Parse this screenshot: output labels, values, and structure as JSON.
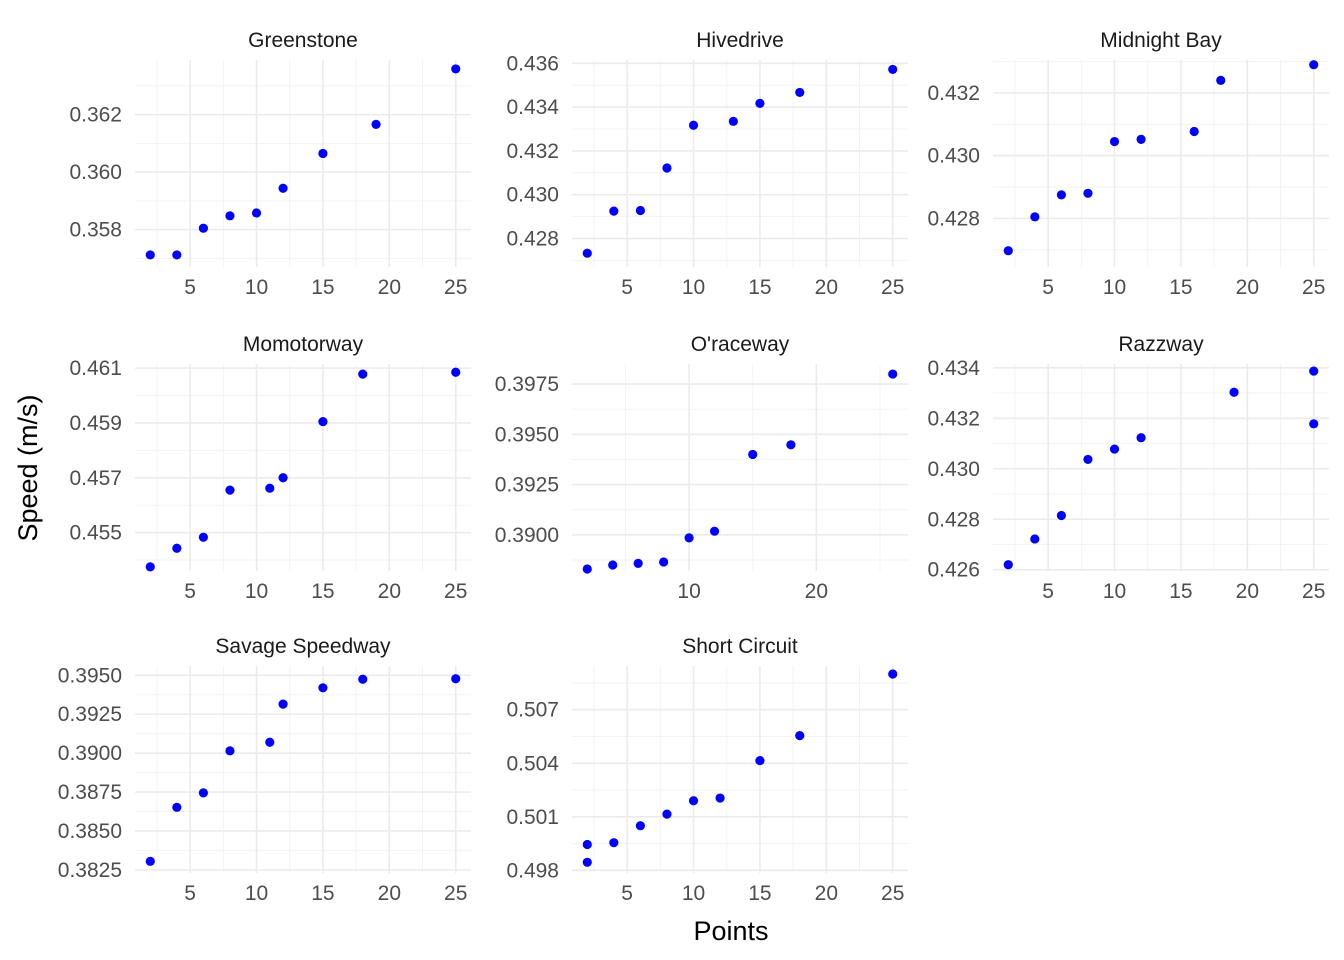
{
  "chart_data": {
    "type": "scatter",
    "xlabel": "Points",
    "ylabel": "Speed (m/s)",
    "point_color": "#0000ff",
    "grid": true,
    "panels": [
      {
        "title": "Greenstone",
        "xticks": [
          5,
          10,
          15,
          20,
          25
        ],
        "yticks": [
          "0.358",
          "0.360",
          "0.362"
        ],
        "xlim": [
          0.85,
          26.15
        ],
        "ylim": [
          0.3567,
          0.3639
        ],
        "points": [
          [
            2,
            0.35712
          ],
          [
            4,
            0.35712
          ],
          [
            6,
            0.35805
          ],
          [
            8,
            0.35848
          ],
          [
            10,
            0.35858
          ],
          [
            12,
            0.35944
          ],
          [
            15,
            0.36065
          ],
          [
            19,
            0.36166
          ],
          [
            25,
            0.36359
          ]
        ]
      },
      {
        "title": "Hivedrive",
        "xticks": [
          5,
          10,
          15,
          20,
          25
        ],
        "yticks": [
          "0.428",
          "0.430",
          "0.432",
          "0.434",
          "0.436"
        ],
        "xlim": [
          0.85,
          26.15
        ],
        "ylim": [
          0.4267,
          0.43615
        ],
        "points": [
          [
            2,
            0.42733
          ],
          [
            4,
            0.42925
          ],
          [
            6,
            0.42928
          ],
          [
            8,
            0.43122
          ],
          [
            10,
            0.43317
          ],
          [
            13,
            0.43335
          ],
          [
            15,
            0.43417
          ],
          [
            18,
            0.43467
          ],
          [
            25,
            0.43572
          ]
        ]
      },
      {
        "title": "Midnight Bay",
        "xticks": [
          5,
          10,
          15,
          20,
          25
        ],
        "yticks": [
          "0.428",
          "0.430",
          "0.432"
        ],
        "xlim": [
          0.85,
          26.15
        ],
        "ylim": [
          0.42645,
          0.43305
        ],
        "points": [
          [
            2,
            0.42697
          ],
          [
            4,
            0.42805
          ],
          [
            6,
            0.42875
          ],
          [
            8,
            0.4288
          ],
          [
            10,
            0.43045
          ],
          [
            12,
            0.43052
          ],
          [
            16,
            0.43077
          ],
          [
            18,
            0.4324
          ],
          [
            25,
            0.4329
          ]
        ]
      },
      {
        "title": "Momotorway",
        "xticks": [
          5,
          10,
          15,
          20,
          25
        ],
        "yticks": [
          "0.455",
          "0.457",
          "0.459",
          "0.461"
        ],
        "xlim": [
          0.85,
          26.15
        ],
        "ylim": [
          0.4536,
          0.46115
        ],
        "points": [
          [
            2,
            0.45375
          ],
          [
            4,
            0.45443
          ],
          [
            6,
            0.45483
          ],
          [
            8,
            0.45655
          ],
          [
            11,
            0.45662
          ],
          [
            12,
            0.457
          ],
          [
            15,
            0.45905
          ],
          [
            18,
            0.46078
          ],
          [
            25,
            0.46085
          ]
        ]
      },
      {
        "title": "O'raceway",
        "xticks": [
          10,
          20
        ],
        "yticks": [
          "0.3900",
          "0.3925",
          "0.3950",
          "0.3975"
        ],
        "xlim": [
          0.8,
          27.2
        ],
        "ylim": [
          0.3882,
          0.3985
        ],
        "points": [
          [
            2,
            0.3883
          ],
          [
            4,
            0.3885
          ],
          [
            6,
            0.38858
          ],
          [
            8,
            0.38865
          ],
          [
            10,
            0.38985
          ],
          [
            12,
            0.39018
          ],
          [
            15,
            0.394
          ],
          [
            18,
            0.39448
          ],
          [
            26,
            0.398
          ]
        ]
      },
      {
        "title": "Razzway",
        "xticks": [
          5,
          10,
          15,
          20,
          25
        ],
        "yticks": [
          "0.426",
          "0.428",
          "0.430",
          "0.432",
          "0.434"
        ],
        "xlim": [
          0.85,
          26.15
        ],
        "ylim": [
          0.42595,
          0.43415
        ],
        "points": [
          [
            2,
            0.4262
          ],
          [
            4,
            0.42722
          ],
          [
            6,
            0.42815
          ],
          [
            8,
            0.43037
          ],
          [
            10,
            0.43078
          ],
          [
            12,
            0.43123
          ],
          [
            19,
            0.43303
          ],
          [
            25,
            0.43178
          ],
          [
            25,
            0.43387
          ]
        ]
      },
      {
        "title": "Savage Speedway",
        "xticks": [
          5,
          10,
          15,
          20,
          25
        ],
        "yticks": [
          "0.3825",
          "0.3850",
          "0.3875",
          "0.3900",
          "0.3925",
          "0.3950"
        ],
        "xlim": [
          0.85,
          26.15
        ],
        "ylim": [
          0.3823,
          0.3956
        ],
        "points": [
          [
            2,
            0.38305
          ],
          [
            4,
            0.38652
          ],
          [
            6,
            0.38745
          ],
          [
            8,
            0.39015
          ],
          [
            11,
            0.3907
          ],
          [
            12,
            0.39315
          ],
          [
            15,
            0.3942
          ],
          [
            18,
            0.39475
          ],
          [
            25,
            0.39478
          ]
        ]
      },
      {
        "title": "Short Circuit",
        "xticks": [
          5,
          10,
          15,
          20,
          25
        ],
        "yticks": [
          "0.498",
          "0.501",
          "0.504",
          "0.507"
        ],
        "xlim": [
          0.85,
          26.15
        ],
        "ylim": [
          0.49785,
          0.50945
        ],
        "points": [
          [
            2,
            0.49845
          ],
          [
            2,
            0.49945
          ],
          [
            4,
            0.49955
          ],
          [
            6,
            0.5005
          ],
          [
            8,
            0.50115
          ],
          [
            10,
            0.5019
          ],
          [
            12,
            0.50205
          ],
          [
            15,
            0.50415
          ],
          [
            18,
            0.50555
          ],
          [
            25,
            0.509
          ]
        ]
      }
    ]
  }
}
